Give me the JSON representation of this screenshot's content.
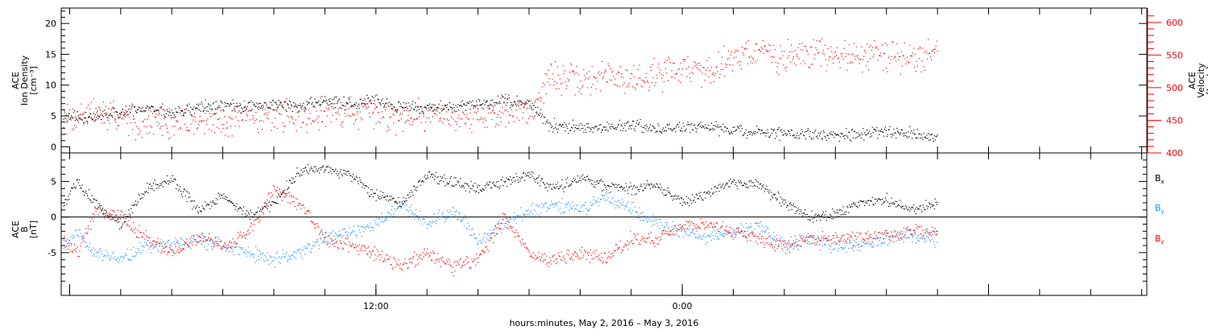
{
  "colors": {
    "density": "#000000",
    "velocity": "#ff0000",
    "bx": "#000000",
    "by": "#1e90ff",
    "bz": "#ff0000",
    "axis": "#000000"
  },
  "x_label": "hours:minutes,  May  2, 2016 – May  3, 2016",
  "x_ticks": [
    {
      "hour": 12,
      "label": "12:00"
    },
    {
      "hour": 24,
      "label": "0:00"
    }
  ],
  "chart_data": [
    {
      "type": "scatter",
      "panel": "top",
      "ylabel_lines": [
        "ACE",
        "Ion Density",
        "[cm⁻³]"
      ],
      "ylim": [
        -1,
        22.5
      ],
      "yticks": [
        0,
        5,
        10,
        15,
        20
      ],
      "series": [
        {
          "name": "Density",
          "axis": "left",
          "points": [
            [
              -0.25,
              5
            ],
            [
              1,
              4.9
            ],
            [
              2,
              5.5
            ],
            [
              3,
              6.3
            ],
            [
              4,
              5.6
            ],
            [
              5,
              6.5
            ],
            [
              6,
              6.8
            ],
            [
              7,
              6.5
            ],
            [
              8,
              7
            ],
            [
              9,
              6.8
            ],
            [
              10,
              7.5
            ],
            [
              11,
              7
            ],
            [
              12,
              7.5
            ],
            [
              13,
              6.3
            ],
            [
              14,
              6.5
            ],
            [
              15,
              6.5
            ],
            [
              16,
              7
            ],
            [
              17,
              7.5
            ],
            [
              18,
              7
            ],
            [
              18.8,
              3.7
            ],
            [
              19,
              3.5
            ],
            [
              20,
              3.2
            ],
            [
              21,
              3.2
            ],
            [
              22,
              3.6
            ],
            [
              23,
              3
            ],
            [
              24,
              3.2
            ],
            [
              25,
              3.2
            ],
            [
              26,
              2.8
            ],
            [
              27,
              2.5
            ],
            [
              28,
              2.3
            ],
            [
              29,
              2.3
            ],
            [
              30,
              1.8
            ],
            [
              31,
              2
            ],
            [
              32,
              2.5
            ],
            [
              33,
              2.3
            ],
            [
              34,
              1.5
            ]
          ]
        },
        {
          "name": "Velocity",
          "axis": "right",
          "ylabel_lines": [
            "ACE",
            "Velocity",
            "[km/s]"
          ],
          "ylim": [
            400,
            622
          ],
          "yticks": [
            400,
            450,
            500,
            550,
            600
          ],
          "points": [
            [
              -0.25,
              455
            ],
            [
              1,
              462
            ],
            [
              2,
              455
            ],
            [
              3,
              448
            ],
            [
              4,
              445
            ],
            [
              5,
              452
            ],
            [
              6,
              448
            ],
            [
              7,
              455
            ],
            [
              8,
              460
            ],
            [
              9,
              458
            ],
            [
              10,
              465
            ],
            [
              11,
              462
            ],
            [
              12,
              460
            ],
            [
              13,
              458
            ],
            [
              14,
              462
            ],
            [
              15,
              455
            ],
            [
              16,
              460
            ],
            [
              17,
              462
            ],
            [
              18,
              465
            ],
            [
              18.8,
              515
            ],
            [
              19,
              518
            ],
            [
              20,
              508
            ],
            [
              21,
              520
            ],
            [
              22,
              512
            ],
            [
              23,
              522
            ],
            [
              24,
              532
            ],
            [
              25,
              525
            ],
            [
              26,
              550
            ],
            [
              27,
              555
            ],
            [
              28,
              545
            ],
            [
              29,
              555
            ],
            [
              30,
              548
            ],
            [
              31,
              552
            ],
            [
              32,
              550
            ],
            [
              33,
              545
            ],
            [
              34,
              558
            ]
          ]
        }
      ]
    },
    {
      "type": "scatter",
      "panel": "bottom",
      "ylabel_lines": [
        "ACE",
        "B",
        "[nT]"
      ],
      "ylim": [
        -11,
        9
      ],
      "yticks": [
        -5,
        0,
        5
      ],
      "series": [
        {
          "name": "Bx",
          "points": [
            [
              -0.25,
              2
            ],
            [
              0.3,
              5
            ],
            [
              1,
              2
            ],
            [
              2,
              -1
            ],
            [
              3,
              4
            ],
            [
              4,
              5.5
            ],
            [
              5,
              1
            ],
            [
              6,
              3
            ],
            [
              7,
              0
            ],
            [
              8,
              2
            ],
            [
              9,
              6.5
            ],
            [
              10,
              7
            ],
            [
              11,
              6
            ],
            [
              12,
              3
            ],
            [
              13,
              2
            ],
            [
              14,
              6
            ],
            [
              15,
              5
            ],
            [
              16,
              4
            ],
            [
              17,
              5
            ],
            [
              18,
              6
            ],
            [
              19,
              4
            ],
            [
              20,
              5.5
            ],
            [
              21,
              4.5
            ],
            [
              22,
              4
            ],
            [
              23,
              4.5
            ],
            [
              24,
              2
            ],
            [
              25,
              3.5
            ],
            [
              26,
              5
            ],
            [
              27,
              4.5
            ],
            [
              28,
              2
            ],
            [
              29,
              0
            ],
            [
              30,
              0.5
            ],
            [
              31,
              2
            ],
            [
              32,
              2.5
            ],
            [
              33,
              1
            ],
            [
              34,
              2
            ]
          ]
        },
        {
          "name": "By",
          "points": [
            [
              -0.25,
              -4
            ],
            [
              0.3,
              -2
            ],
            [
              1,
              -5
            ],
            [
              2,
              -6
            ],
            [
              3,
              -4
            ],
            [
              4,
              -4
            ],
            [
              5,
              -3
            ],
            [
              6,
              -4
            ],
            [
              7,
              -5
            ],
            [
              8,
              -6
            ],
            [
              9,
              -5
            ],
            [
              10,
              -3
            ],
            [
              11,
              -2
            ],
            [
              12,
              -1
            ],
            [
              13,
              2
            ],
            [
              14,
              -1
            ],
            [
              15,
              1
            ],
            [
              16,
              -3
            ],
            [
              17,
              -1
            ],
            [
              18,
              1
            ],
            [
              19,
              2
            ],
            [
              20,
              1
            ],
            [
              21,
              3
            ],
            [
              22,
              1
            ],
            [
              23,
              -1
            ],
            [
              24,
              -2
            ],
            [
              25,
              -3
            ],
            [
              26,
              -2
            ],
            [
              27,
              -1
            ],
            [
              28,
              -4
            ],
            [
              29,
              -3
            ],
            [
              30,
              -4
            ],
            [
              31,
              -4
            ],
            [
              32,
              -3
            ],
            [
              33,
              -2.5
            ],
            [
              34,
              -3
            ]
          ]
        },
        {
          "name": "Bz",
          "points": [
            [
              -0.25,
              -3
            ],
            [
              0.3,
              -5
            ],
            [
              1,
              1
            ],
            [
              2,
              0
            ],
            [
              3,
              -3
            ],
            [
              4,
              -5
            ],
            [
              5,
              -3
            ],
            [
              6,
              -4
            ],
            [
              7,
              -2
            ],
            [
              8,
              4
            ],
            [
              9,
              2
            ],
            [
              10,
              -3
            ],
            [
              11,
              -4
            ],
            [
              12,
              -5
            ],
            [
              13,
              -7
            ],
            [
              14,
              -5
            ],
            [
              15,
              -7
            ],
            [
              16,
              -6
            ],
            [
              17,
              0
            ],
            [
              18,
              -5
            ],
            [
              19,
              -6
            ],
            [
              20,
              -5
            ],
            [
              21,
              -6
            ],
            [
              22,
              -3
            ],
            [
              23,
              -3
            ],
            [
              24,
              -1
            ],
            [
              25,
              -1
            ],
            [
              26,
              -2
            ],
            [
              27,
              -3
            ],
            [
              28,
              -4
            ],
            [
              29,
              -3
            ],
            [
              30,
              -3
            ],
            [
              31,
              -3
            ],
            [
              32,
              -2.5
            ],
            [
              33,
              -2
            ],
            [
              34,
              -2
            ]
          ]
        }
      ]
    }
  ]
}
